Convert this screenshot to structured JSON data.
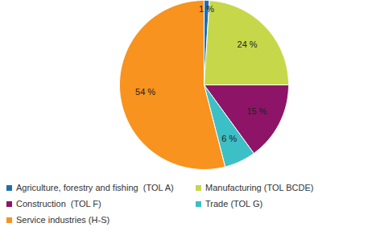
{
  "chart_data": {
    "type": "pie",
    "categories": [
      "Agriculture, forestry and fishing  (TOL A)",
      "Manufacturing (TOL BCDE)",
      "Construction  (TOL F)",
      "Trade (TOL G)",
      "Service industries (H-S)"
    ],
    "values": [
      1,
      24,
      15,
      6,
      54
    ],
    "value_labels": [
      "1 %",
      "24 %",
      "15 %",
      "6 %",
      "54 %"
    ],
    "colors": [
      "#1f6eb0",
      "#c6d84a",
      "#8e1468",
      "#3dbfc6",
      "#f7931e"
    ],
    "data_labels": true,
    "legend": "bottom"
  }
}
